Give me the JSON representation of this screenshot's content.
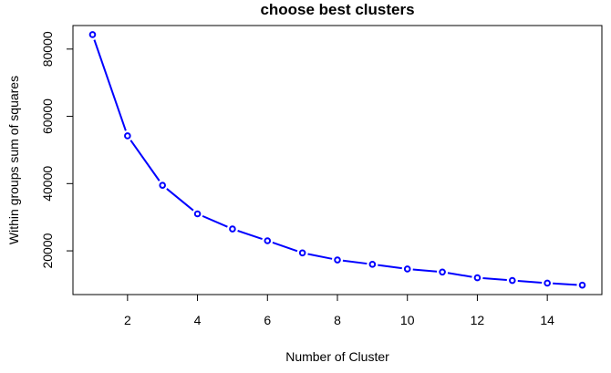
{
  "chart_data": {
    "type": "line",
    "title": "choose best clusters",
    "xlabel": "Number of Cluster",
    "ylabel": "Within groups sum of squares",
    "x": [
      1,
      2,
      3,
      4,
      5,
      6,
      7,
      8,
      9,
      10,
      11,
      12,
      13,
      14,
      15
    ],
    "series": [
      {
        "values": [
          84300,
          54200,
          39500,
          31000,
          26500,
          23000,
          19400,
          17300,
          16000,
          14600,
          13700,
          12000,
          11200,
          10400,
          9800
        ]
      }
    ],
    "xlim": [
      0.44,
      15.56
    ],
    "ylim": [
      7000,
      87000
    ],
    "xticks": [
      2,
      4,
      6,
      8,
      10,
      12,
      14
    ],
    "yticks": [
      20000,
      40000,
      60000,
      80000
    ],
    "xtick_labels": [
      "2",
      "4",
      "6",
      "8",
      "10",
      "12",
      "14"
    ],
    "ytick_labels": [
      "20000",
      "40000",
      "60000",
      "80000"
    ],
    "grid": false,
    "line_style": "both",
    "color": "#0000ff"
  }
}
